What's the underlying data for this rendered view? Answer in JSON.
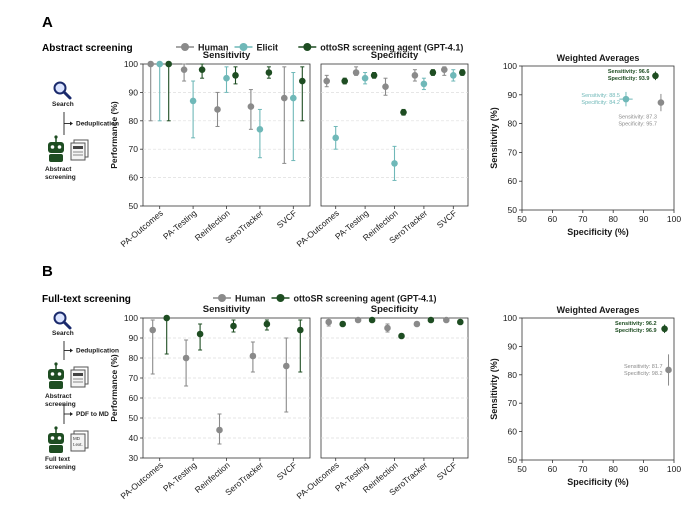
{
  "colors": {
    "human": "#8a8a8a",
    "elicit": "#6fb8b8",
    "otto": "#1e4d22",
    "grid": "#dddddd",
    "axis": "#222222",
    "text": "#1a1a1a"
  },
  "panelA": {
    "letter": "A",
    "title": "Abstract screening",
    "legend": [
      {
        "label": "Human",
        "color": "#8a8a8a"
      },
      {
        "label": "Elicit",
        "color": "#6fb8b8"
      },
      {
        "label": "ottoSR screening agent (GPT-4.1)",
        "color": "#1e4d22"
      }
    ],
    "workflow": [
      {
        "label": "Search",
        "icon": "magnifier-icon"
      },
      {
        "label": "Deduplication",
        "icon": "arrow-icon"
      },
      {
        "label": "Abstract\nscreening",
        "icon": "robot-icon"
      }
    ]
  },
  "panelB": {
    "letter": "B",
    "title": "Full-text screening",
    "legend": [
      {
        "label": "Human",
        "color": "#8a8a8a"
      },
      {
        "label": "ottoSR screening agent (GPT-4.1)",
        "color": "#1e4d22"
      }
    ],
    "workflow": [
      {
        "label": "Search",
        "icon": "magnifier-icon"
      },
      {
        "label": "Deduplication",
        "icon": "arrow-icon"
      },
      {
        "label": "Abstract\nscreening",
        "icon": "robot-icon"
      },
      {
        "label": "PDF to MD",
        "icon": "arrow-icon"
      },
      {
        "label": "Full text\nscreening",
        "icon": "robot-icon"
      }
    ],
    "doc_text": "MD\nt.ext."
  },
  "chart_data": [
    {
      "id": "A-sensitivity",
      "type": "scatter",
      "title": "Sensitivity",
      "ylabel": "Performance (%)",
      "ylim": [
        50,
        100
      ],
      "yticks": [
        50,
        60,
        70,
        80,
        90,
        100
      ],
      "categories": [
        "PA-Outcomes",
        "PA-Testing",
        "Reinfection",
        "SeroTracker",
        "SVCF"
      ],
      "series": [
        {
          "name": "Human",
          "color": "#8a8a8a",
          "values": [
            100,
            98,
            84,
            85,
            88
          ],
          "lo": [
            80,
            94,
            78,
            77,
            65
          ],
          "hi": [
            100,
            100,
            90,
            91,
            99
          ]
        },
        {
          "name": "Elicit",
          "color": "#6fb8b8",
          "values": [
            100,
            87,
            95,
            77,
            88
          ],
          "lo": [
            80,
            74,
            90,
            67,
            66
          ],
          "hi": [
            100,
            94,
            99,
            84,
            97
          ]
        },
        {
          "name": "ottoSR screening agent (GPT-4.1)",
          "color": "#1e4d22",
          "values": [
            100,
            98,
            96,
            97,
            94
          ],
          "lo": [
            80,
            95,
            93,
            95,
            80
          ],
          "hi": [
            100,
            100,
            99,
            99,
            99
          ]
        }
      ]
    },
    {
      "id": "A-specificity",
      "type": "scatter",
      "title": "Specificity",
      "ylabel": "",
      "ylim": [
        50,
        100
      ],
      "categories": [
        "PA-Outcomes",
        "PA-Testing",
        "Reinfection",
        "SeroTracker",
        "SVCF"
      ],
      "series": [
        {
          "name": "Human",
          "color": "#8a8a8a",
          "values": [
            94,
            97,
            92,
            96,
            98
          ],
          "lo": [
            92,
            96,
            89,
            94,
            96
          ],
          "hi": [
            96,
            99,
            95,
            98,
            99
          ]
        },
        {
          "name": "Elicit",
          "color": "#6fb8b8",
          "values": [
            74,
            95,
            65,
            93,
            96
          ],
          "lo": [
            70,
            93,
            59,
            91,
            94
          ],
          "hi": [
            78,
            97,
            71,
            95,
            98
          ]
        },
        {
          "name": "ottoSR screening agent (GPT-4.1)",
          "color": "#1e4d22",
          "values": [
            94,
            96,
            83,
            97,
            97
          ],
          "lo": [
            93,
            95,
            82,
            96,
            96
          ],
          "hi": [
            95,
            97,
            84,
            98,
            98
          ]
        }
      ]
    },
    {
      "id": "A-weighted",
      "type": "scatter",
      "title": "Weighted Averages",
      "xlabel": "Specificity (%)",
      "ylabel": "Sensitivity (%)",
      "xlim": [
        50,
        100
      ],
      "ylim": [
        50,
        100
      ],
      "ticks": [
        50,
        60,
        70,
        80,
        90,
        100
      ],
      "points": [
        {
          "name": "ottoSR",
          "color": "#1e4d22",
          "x": 93.9,
          "y": 96.6,
          "xerr": 0.4,
          "yerr": 1.5,
          "label1": "Sensitivity: 96.6",
          "label2": "Specificity: 93.9"
        },
        {
          "name": "Elicit",
          "color": "#6fb8b8",
          "x": 84.2,
          "y": 88.5,
          "xerr": 2.2,
          "yerr": 2.5,
          "label1": "Sensitivity: 88.5",
          "label2": "Specificity: 84.2"
        },
        {
          "name": "Human",
          "color": "#8a8a8a",
          "x": 95.7,
          "y": 87.3,
          "xerr": 0.6,
          "yerr": 3.0,
          "label1": "Sensitivity: 87.3",
          "label2": "Specificity: 95.7"
        }
      ]
    },
    {
      "id": "B-sensitivity",
      "type": "scatter",
      "title": "Sensitivity",
      "ylabel": "Performance (%)",
      "ylim": [
        30,
        100
      ],
      "yticks": [
        30,
        40,
        50,
        60,
        70,
        80,
        90,
        100
      ],
      "categories": [
        "PA-Outcomes",
        "PA-Testing",
        "Reinfection",
        "SeroTracker",
        "SVCF"
      ],
      "series": [
        {
          "name": "Human",
          "color": "#8a8a8a",
          "values": [
            94,
            80,
            44,
            81,
            76
          ],
          "lo": [
            72,
            66,
            37,
            73,
            53
          ],
          "hi": [
            99,
            89,
            52,
            88,
            90
          ]
        },
        {
          "name": "ottoSR screening agent (GPT-4.1)",
          "color": "#1e4d22",
          "values": [
            100,
            92,
            96,
            97,
            94
          ],
          "lo": [
            82,
            84,
            93,
            94,
            73
          ],
          "hi": [
            100,
            97,
            99,
            99,
            99
          ]
        }
      ]
    },
    {
      "id": "B-specificity",
      "type": "scatter",
      "title": "Specificity",
      "ylabel": "",
      "ylim": [
        30,
        100
      ],
      "categories": [
        "PA-Outcomes",
        "PA-Testing",
        "Reinfection",
        "SeroTracker",
        "SVCF"
      ],
      "series": [
        {
          "name": "Human",
          "color": "#8a8a8a",
          "values": [
            98,
            99,
            95,
            97,
            99
          ],
          "lo": [
            96,
            98,
            93,
            96,
            98
          ],
          "hi": [
            99,
            100,
            97,
            98,
            100
          ]
        },
        {
          "name": "ottoSR screening agent (GPT-4.1)",
          "color": "#1e4d22",
          "values": [
            97,
            99,
            91,
            99,
            98
          ],
          "lo": [
            96,
            98,
            90,
            98,
            97
          ],
          "hi": [
            98,
            100,
            92,
            100,
            99
          ]
        }
      ]
    },
    {
      "id": "B-weighted",
      "type": "scatter",
      "title": "Weighted Averages",
      "xlabel": "Specificity (%)",
      "ylabel": "Sensitivity (%)",
      "xlim": [
        50,
        100
      ],
      "ylim": [
        50,
        100
      ],
      "ticks": [
        50,
        60,
        70,
        80,
        90,
        100
      ],
      "points": [
        {
          "name": "ottoSR",
          "color": "#1e4d22",
          "x": 96.9,
          "y": 96.2,
          "xerr": 0.3,
          "yerr": 1.5,
          "label1": "Sensitivity: 96.2",
          "label2": "Specificity: 96.9"
        },
        {
          "name": "Human",
          "color": "#8a8a8a",
          "x": 98.2,
          "y": 81.7,
          "xerr": 0.3,
          "yerr": 5.5,
          "label1": "Sensitivity: 81.7",
          "label2": "Specificity: 98.2"
        }
      ]
    }
  ]
}
